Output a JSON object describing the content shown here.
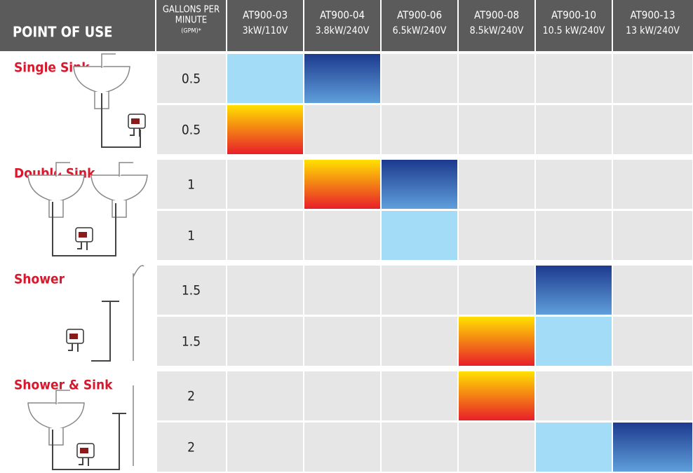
{
  "header": {
    "title": "POINT OF USE",
    "gpm_label": [
      "GALLONS PER",
      "MINUTE"
    ],
    "gpm_unit": "(GPM)*",
    "models": [
      {
        "name": "AT900-03",
        "rating": "3kW/110V"
      },
      {
        "name": "AT900-04",
        "rating": "3.8kW/240V"
      },
      {
        "name": "AT900-06",
        "rating": "6.5kW/240V"
      },
      {
        "name": "AT900-08",
        "rating": "8.5kW/240V"
      },
      {
        "name": "AT900-10",
        "rating": "10.5 kW/240V"
      },
      {
        "name": "AT900-13",
        "rating": "13 kW/240V"
      }
    ]
  },
  "palette": {
    "empty": "#e6e6e6",
    "cool": "#a3dcf6",
    "deep": [
      "#1d3a8e",
      "#5f9fdb"
    ],
    "hot": [
      "#ffe100",
      "#e81e2a"
    ]
  },
  "groups": [
    {
      "label": "Single Sink",
      "rows": [
        {
          "gpm": 0.5,
          "fills": [
            "cool",
            "deep",
            null,
            null,
            null,
            null
          ]
        },
        {
          "gpm": 0.5,
          "fills": [
            "hot",
            null,
            null,
            null,
            null,
            null
          ]
        }
      ]
    },
    {
      "label": "Double Sink",
      "rows": [
        {
          "gpm": 1,
          "fills": [
            null,
            "hot",
            "deep",
            null,
            null,
            null
          ]
        },
        {
          "gpm": 1,
          "fills": [
            null,
            null,
            "cool",
            null,
            null,
            null
          ]
        }
      ]
    },
    {
      "label": "Shower",
      "rows": [
        {
          "gpm": 1.5,
          "fills": [
            null,
            null,
            null,
            null,
            "deep",
            null
          ]
        },
        {
          "gpm": 1.5,
          "fills": [
            null,
            null,
            null,
            "hot",
            "cool",
            null
          ]
        }
      ]
    },
    {
      "label": "Shower & Sink",
      "rows": [
        {
          "gpm": 2,
          "fills": [
            null,
            null,
            null,
            "hot",
            null,
            null
          ]
        },
        {
          "gpm": 2,
          "fills": [
            null,
            null,
            null,
            null,
            "cool",
            "deep"
          ]
        }
      ]
    }
  ]
}
